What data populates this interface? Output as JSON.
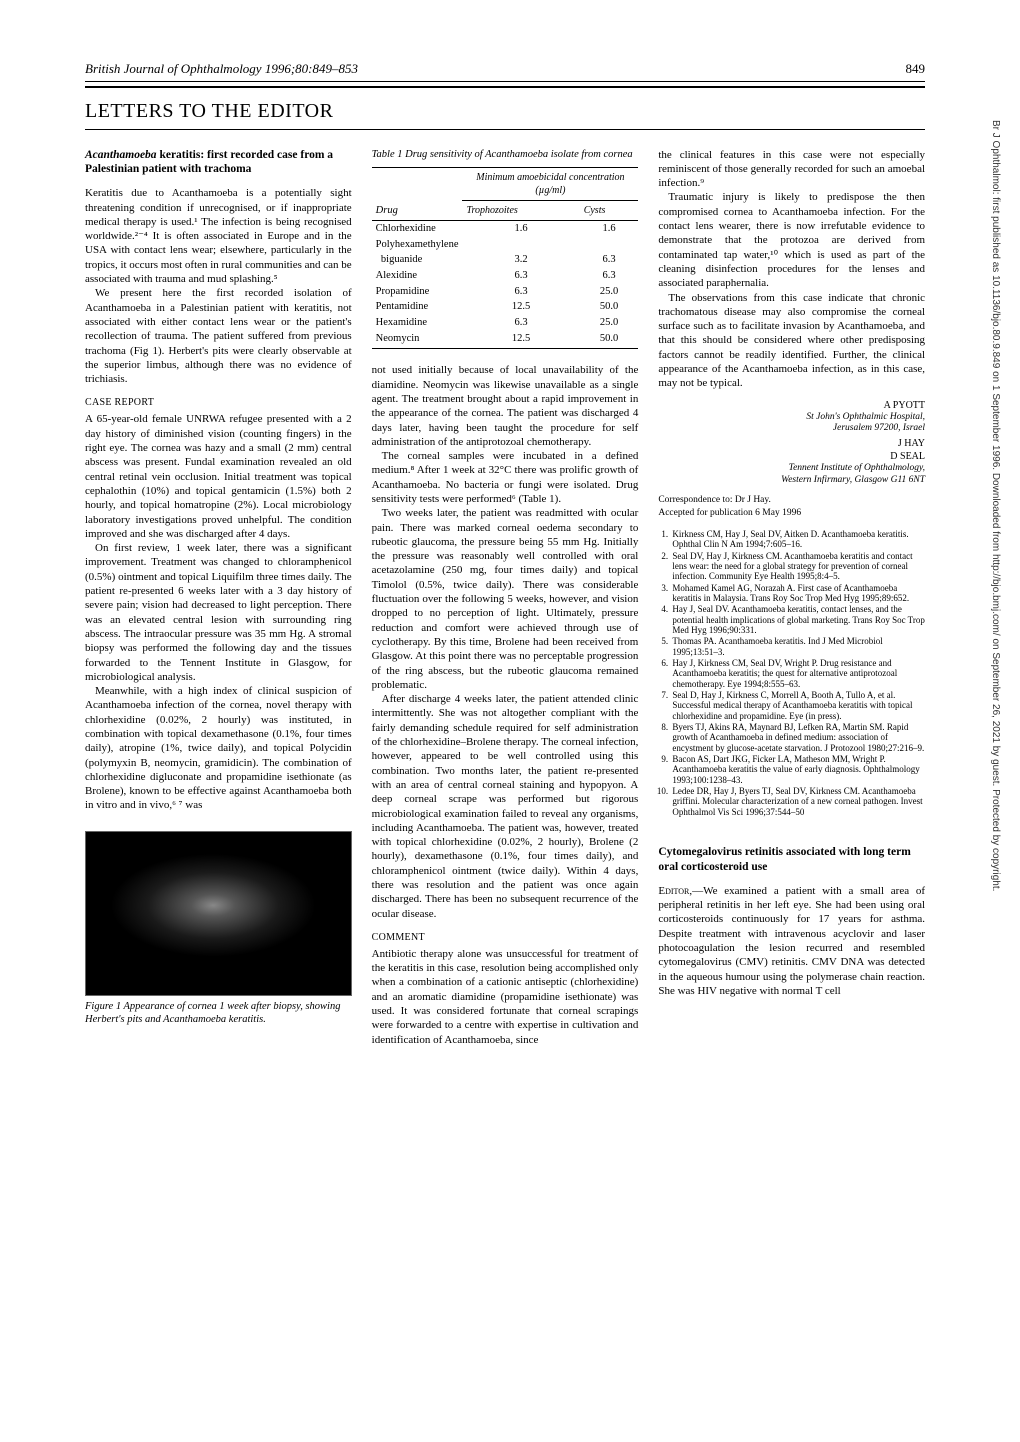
{
  "journal": {
    "header": "British Journal of Ophthalmology 1996;80:849–853",
    "page": "849"
  },
  "sidebar": "Br J Ophthalmol: first published as 10.1136/bjo.80.9.849 on 1 September 1996. Downloaded from http://bjo.bmj.com/ on September 26, 2021 by guest. Protected by copyright.",
  "sectionTitle": "LETTERS TO THE EDITOR",
  "article1": {
    "title_prefix": "Acanthamoeba",
    "title_rest": " keratitis: first recorded case from a Palestinian patient with trachoma",
    "intro1": "Keratitis due to Acanthamoeba is a potentially sight threatening condition if unrecognised, or if inappropriate medical therapy is used.¹ The infection is being recognised worldwide.²⁻⁴ It is often associated in Europe and in the USA with contact lens wear; elsewhere, particularly in the tropics, it occurs most often in rural communities and can be associated with trauma and mud splashing.⁵",
    "intro2": "We present here the first recorded isolation of Acanthamoeba in a Palestinian patient with keratitis, not associated with either contact lens wear or the patient's recollection of trauma. The patient suffered from previous trachoma (Fig 1). Herbert's pits were clearly observable at the superior limbus, although there was no evidence of trichiasis.",
    "caseReportHeading": "CASE REPORT",
    "case1": "A 65-year-old female UNRWA refugee presented with a 2 day history of diminished vision (counting fingers) in the right eye. The cornea was hazy and a small (2 mm) central abscess was present. Fundal examination revealed an old central retinal vein occlusion. Initial treatment was topical cephalothin (10%) and topical gentamicin (1.5%) both 2 hourly, and topical homatropine (2%). Local microbiology laboratory investigations proved unhelpful. The condition improved and she was discharged after 4 days.",
    "case2": "On first review, 1 week later, there was a significant improvement. Treatment was changed to chloramphenicol (0.5%) ointment and topical Liquifilm three times daily. The patient re-presented 6 weeks later with a 3 day history of severe pain; vision had decreased to light perception. There was an elevated central lesion with surrounding ring abscess. The intraocular pressure was 35 mm Hg. A stromal biopsy was performed the following day and the tissues forwarded to the Tennent Institute in Glasgow, for microbiological analysis.",
    "case3": "Meanwhile, with a high index of clinical suspicion of Acanthamoeba infection of the cornea, novel therapy with chlorhexidine (0.02%, 2 hourly) was instituted, in combination with topical dexamethasone (0.1%, four times daily), atropine (1%, twice daily), and topical Polycidin (polymyxin B, neomycin, gramidicin). The combination of chlorhexidine digluconate and propamidine isethionate (as Brolene), known to be effective against Acanthamoeba both in vitro and in vivo,⁶ ⁷ was",
    "figureCaption": "Figure 1   Appearance of cornea 1 week after biopsy, showing Herbert's pits and Acanthamoeba keratitis.",
    "table": {
      "caption": "Table 1   Drug sensitivity of Acanthamoeba isolate from cornea",
      "groupHeader": "Minimum amoebicidal concentration (µg/ml)",
      "headers": {
        "drug": "Drug",
        "troph": "Trophozoites",
        "cysts": "Cysts"
      },
      "rows": [
        {
          "drug": "Chlorhexidine",
          "troph": "1.6",
          "cysts": "1.6"
        },
        {
          "drug": "Polyhexamethylene",
          "troph": "",
          "cysts": ""
        },
        {
          "drug": "  biguanide",
          "troph": "3.2",
          "cysts": "6.3"
        },
        {
          "drug": "Alexidine",
          "troph": "6.3",
          "cysts": "6.3"
        },
        {
          "drug": "Propamidine",
          "troph": "6.3",
          "cysts": "25.0"
        },
        {
          "drug": "Pentamidine",
          "troph": "12.5",
          "cysts": "50.0"
        },
        {
          "drug": "Hexamidine",
          "troph": "6.3",
          "cysts": "25.0"
        },
        {
          "drug": "Neomycin",
          "troph": "12.5",
          "cysts": "50.0"
        }
      ]
    },
    "col2p1": "not used initially because of local unavailability of the diamidine. Neomycin was likewise unavailable as a single agent. The treatment brought about a rapid improvement in the appearance of the cornea. The patient was discharged 4 days later, having been taught the procedure for self administration of the antiprotozoal chemotherapy.",
    "col2p2": "The corneal samples were incubated in a defined medium.⁸ After 1 week at 32°C there was prolific growth of Acanthamoeba. No bacteria or fungi were isolated. Drug sensitivity tests were performed⁶ (Table 1).",
    "col2p3": "Two weeks later, the patient was readmitted with ocular pain. There was marked corneal oedema secondary to rubeotic glaucoma, the pressure being 55 mm Hg. Initially the pressure was reasonably well controlled with oral acetazolamine (250 mg, four times daily) and topical Timolol (0.5%, twice daily). There was considerable fluctuation over the following 5 weeks, however, and vision dropped to no perception of light. Ultimately, pressure reduction and comfort were achieved through use of cyclotherapy. By this time, Brolene had been received from Glasgow. At this point there was no perceptable progression of the ring abscess, but the rubeotic glaucoma remained problematic.",
    "col2p4": "After discharge 4 weeks later, the patient attended clinic intermittently. She was not altogether compliant with the fairly demanding schedule required for self administration of the chlorhexidine–Brolene therapy. The corneal infection, however, appeared to be well controlled using this combination. Two months later, the patient re-presented with an area of central corneal staining and hypopyon. A deep corneal scrape was performed but rigorous microbiological examination failed to reveal any organisms, including Acanthamoeba. The patient was, however, treated with topical chlorhexidine (0.02%, 2 hourly), Brolene (2 hourly), dexamethasone (0.1%, four times daily), and chloramphenicol ointment (twice daily). Within 4 days, there was resolution and the patient was once again discharged. There has been no subsequent recurrence of the ocular disease.",
    "commentHeading": "COMMENT",
    "comment1": "Antibiotic therapy alone was unsuccessful for treatment of the keratitis in this case, resolution being accomplished only when a combination of a cationic antiseptic (chlorhexidine) and an aromatic diamidine (propamidine isethionate) was used. It was considered fortunate that corneal scrapings were forwarded to a centre with expertise in cultivation and identification of Acanthamoeba, since",
    "col3p1": "the clinical features in this case were not especially reminiscent of those generally recorded for such an amoebal infection.⁹",
    "col3p2": "Traumatic injury is likely to predispose the then compromised cornea to Acanthamoeba infection. For the contact lens wearer, there is now irrefutable evidence to demonstrate that the protozoa are derived from contaminated tap water,¹⁰ which is used as part of the cleaning disinfection procedures for the lenses and associated paraphernalia.",
    "col3p3": "The observations from this case indicate that chronic trachomatous disease may also compromise the corneal surface such as to facilitate invasion by Acanthamoeba, and that this should be considered where other predisposing factors cannot be readily identified. Further, the clinical appearance of the Acanthamoeba infection, as in this case, may not be typical.",
    "authors": {
      "a1": "A PYOTT",
      "aff1a": "St John's Ophthalmic Hospital,",
      "aff1b": "Jerusalem 97200, Israel",
      "a2": "J HAY",
      "a3": "D SEAL",
      "aff2a": "Tennent Institute of Ophthalmology,",
      "aff2b": "Western Infirmary, Glasgow G11 6NT"
    },
    "correspondence": "Correspondence to: Dr J Hay.",
    "accepted": "Accepted for publication 6 May 1996",
    "refs": [
      "Kirkness CM, Hay J, Seal DV, Aitken D. Acanthamoeba keratitis. Ophthal Clin N Am 1994;7:605–16.",
      "Seal DV, Hay J, Kirkness CM. Acanthamoeba keratitis and contact lens wear: the need for a global strategy for prevention of corneal infection. Community Eye Health 1995;8:4–5.",
      "Mohamed Kamel AG, Norazah A. First case of Acanthamoeba keratitis in Malaysia. Trans Roy Soc Trop Med Hyg 1995;89:652.",
      "Hay J, Seal DV. Acanthamoeba keratitis, contact lenses, and the potential health implications of global marketing. Trans Roy Soc Trop Med Hyg 1996;90:331.",
      "Thomas PA. Acanthamoeba keratitis. Ind J Med Microbiol 1995;13:51–3.",
      "Hay J, Kirkness CM, Seal DV, Wright P. Drug resistance and Acanthamoeba keratitis; the quest for alternative antiprotozoal chemotherapy. Eye 1994;8:555–63.",
      "Seal D, Hay J, Kirkness C, Morrell A, Booth A, Tullo A, et al. Successful medical therapy of Acanthamoeba keratitis with topical chlorhexidine and propamidine. Eye (in press).",
      "Byers TJ, Akins RA, Maynard BJ, Lefken RA, Martin SM. Rapid growth of Acanthamoeba in defined medium: association of encystment by glucose-acetate starvation. J Protozool 1980;27:216–9.",
      "Bacon AS, Dart JKG, Ficker LA, Matheson MM, Wright P. Acanthamoeba keratitis the value of early diagnosis. Ophthalmology 1993;100:1238–43.",
      "Ledee DR, Hay J, Byers TJ, Seal DV, Kirkness CM. Acanthamoeba griffini. Molecular characterization of a new corneal pathogen. Invest Ophthalmol Vis Sci 1996;37:544–50"
    ]
  },
  "article2": {
    "title": "Cytomegalovirus retinitis associated with long term oral corticosteroid use",
    "editorLabel": "Editor,",
    "body": "—We examined a patient with a small area of peripheral retinitis in her left eye. She had been using oral corticosteroids continuously for 17 years for asthma. Despite treatment with intravenous acyclovir and laser photocoagulation the lesion recurred and resembled cytomegalovirus (CMV) retinitis. CMV DNA was detected in the aqueous humour using the polymerase chain reaction. She was HIV negative with normal T cell"
  }
}
